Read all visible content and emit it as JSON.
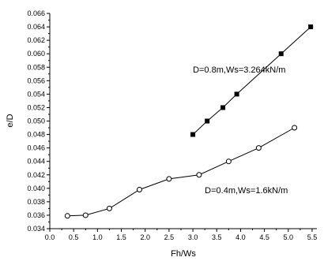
{
  "chart_data": {
    "type": "line",
    "xlabel": "Fh/Ws",
    "ylabel": "e/D",
    "xlim": [
      0.0,
      5.6
    ],
    "ylim": [
      0.034,
      0.066
    ],
    "x_ticks": [
      "0.0",
      "0.5",
      "1.0",
      "1.5",
      "2.0",
      "2.5",
      "3.0",
      "3.5",
      "4.0",
      "4.5",
      "5.0",
      "5.5"
    ],
    "y_ticks": [
      "0.034",
      "0.036",
      "0.038",
      "0.040",
      "0.042",
      "0.044",
      "0.046",
      "0.048",
      "0.050",
      "0.052",
      "0.054",
      "0.056",
      "0.058",
      "0.060",
      "0.062",
      "0.064",
      "0.066"
    ],
    "grid": false,
    "series": [
      {
        "marker": "filled-square",
        "color": "#000000",
        "points": [
          [
            3.0,
            0.048
          ],
          [
            3.3,
            0.05
          ],
          [
            3.63,
            0.052
          ],
          [
            3.92,
            0.054
          ],
          [
            4.85,
            0.06
          ],
          [
            5.47,
            0.064
          ]
        ]
      },
      {
        "marker": "open-circle",
        "color": "#000000",
        "points": [
          [
            0.37,
            0.0359
          ],
          [
            0.75,
            0.036
          ],
          [
            1.25,
            0.037
          ],
          [
            1.88,
            0.0398
          ],
          [
            2.5,
            0.0414
          ],
          [
            3.13,
            0.042
          ],
          [
            3.75,
            0.044
          ],
          [
            4.38,
            0.046
          ],
          [
            5.13,
            0.049
          ]
        ]
      }
    ],
    "annotations": [
      {
        "text": "D=0.8m,Ws=3.264kN/m",
        "x": 3.0,
        "y": 0.0572
      },
      {
        "text": "D=0.4m,Ws=1.6kN/m",
        "x": 3.25,
        "y": 0.0393
      }
    ]
  }
}
